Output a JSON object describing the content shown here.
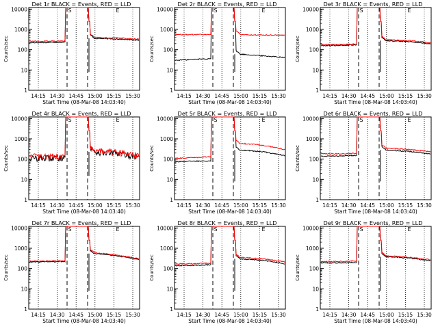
{
  "chart_data": [
    {
      "type": "line",
      "title": "Det 1r BLACK = Events, RED = LLD",
      "xlabel": "Start Time (08-Mar-08 14:03:40)",
      "ylabel": "Counts/sec",
      "xticks": [
        "14:15",
        "14:30",
        "14:45",
        "15:00",
        "15:15",
        "15:30"
      ],
      "yticks": [
        "1",
        "10",
        "100",
        "1000",
        "10000"
      ],
      "ylim": [
        1,
        12000
      ],
      "markers": [
        "S",
        "E"
      ],
      "red_base": [
        260,
        260,
        280,
        400,
        380,
        330
      ],
      "black_base": [
        220,
        230,
        240,
        360,
        340,
        290
      ]
    },
    {
      "type": "line",
      "title": "Det 2r BLACK = Events, RED = LLD",
      "xlabel": "Start Time (08-Mar-08 14:03:40)",
      "ylabel": "Counts/sec",
      "xticks": [
        "14:15",
        "14:30",
        "14:45",
        "15:00",
        "15:15",
        "15:30"
      ],
      "yticks": [
        "1",
        "10",
        "100",
        "1000",
        "10000"
      ],
      "ylim": [
        1,
        12000
      ],
      "markers": [
        "S",
        "E"
      ],
      "red_base": [
        560,
        560,
        560,
        540,
        530,
        520
      ],
      "black_base": [
        30,
        34,
        38,
        60,
        50,
        42
      ]
    },
    {
      "type": "line",
      "title": "Det 3r BLACK = Events, RED = LLD",
      "xlabel": "Start Time (08-Mar-08 14:03:40)",
      "ylabel": "Counts/sec",
      "xticks": [
        "14:15",
        "14:30",
        "14:45",
        "15:00",
        "15:15",
        "15:30"
      ],
      "yticks": [
        "1",
        "10",
        "100",
        "1000",
        "10000"
      ],
      "ylim": [
        1,
        12000
      ],
      "markers": [
        "S",
        "E"
      ],
      "red_base": [
        180,
        180,
        200,
        310,
        280,
        220
      ],
      "black_base": [
        160,
        165,
        180,
        280,
        250,
        195
      ]
    },
    {
      "type": "line",
      "title": "Det 4r BLACK = Events, RED = LLD",
      "xlabel": "Start Time (08-Mar-08 14:03:40)",
      "ylabel": "Counts/sec",
      "xticks": [
        "14:15",
        "14:30",
        "14:45",
        "15:00",
        "15:15",
        "15:30"
      ],
      "yticks": [
        "1",
        "10",
        "100",
        "1000",
        "10000"
      ],
      "ylim": [
        1,
        12000
      ],
      "markers": [
        "S",
        "E"
      ],
      "red_base": [
        140,
        140,
        160,
        260,
        220,
        150
      ],
      "black_base": [
        110,
        115,
        130,
        230,
        190,
        125
      ]
    },
    {
      "type": "line",
      "title": "Det 5r BLACK = Events, RED = LLD",
      "xlabel": "Start Time (08-Mar-08 14:03:40)",
      "ylabel": "Counts/sec",
      "xticks": [
        "14:15",
        "14:30",
        "14:45",
        "15:00",
        "15:15",
        "15:30"
      ],
      "yticks": [
        "1",
        "10",
        "100",
        "1000",
        "10000"
      ],
      "ylim": [
        1,
        12000
      ],
      "markers": [
        "S",
        "E"
      ],
      "red_base": [
        110,
        120,
        140,
        600,
        480,
        300
      ],
      "black_base": [
        75,
        80,
        85,
        280,
        230,
        150
      ]
    },
    {
      "type": "line",
      "title": "Det 6r BLACK = Events, RED = LLD",
      "xlabel": "Start Time (08-Mar-08 14:03:40)",
      "ylabel": "Counts/sec",
      "xticks": [
        "14:15",
        "14:30",
        "14:45",
        "15:00",
        "15:15",
        "15:30"
      ],
      "yticks": [
        "1",
        "10",
        "100",
        "1000",
        "10000"
      ],
      "ylim": [
        1,
        12000
      ],
      "markers": [
        "S",
        "E"
      ],
      "red_base": [
        180,
        185,
        200,
        350,
        300,
        230
      ],
      "black_base": [
        140,
        145,
        160,
        280,
        240,
        180
      ]
    },
    {
      "type": "line",
      "title": "Det 7r BLACK = Events, RED = LLD",
      "xlabel": "Start Time (08-Mar-08 14:03:40)",
      "ylabel": "Counts/sec",
      "xticks": [
        "14:15",
        "14:30",
        "14:45",
        "15:00",
        "15:15",
        "15:30"
      ],
      "yticks": [
        "1",
        "10",
        "100",
        "1000",
        "10000"
      ],
      "ylim": [
        1,
        12000
      ],
      "markers": [
        "S",
        "E"
      ],
      "red_base": [
        230,
        235,
        250,
        600,
        450,
        300
      ],
      "black_base": [
        210,
        215,
        230,
        550,
        420,
        280
      ]
    },
    {
      "type": "line",
      "title": "Det 8r BLACK = Events, RED = LLD",
      "xlabel": "Start Time (08-Mar-08 14:03:40)",
      "ylabel": "Counts/sec",
      "xticks": [
        "14:15",
        "14:30",
        "14:45",
        "15:00",
        "15:15",
        "15:30"
      ],
      "yticks": [
        "1",
        "10",
        "100",
        "1000",
        "10000"
      ],
      "ylim": [
        1,
        12000
      ],
      "markers": [
        "S",
        "E"
      ],
      "red_base": [
        170,
        175,
        190,
        350,
        300,
        210
      ],
      "black_base": [
        140,
        145,
        160,
        300,
        250,
        175
      ]
    },
    {
      "type": "line",
      "title": "Det 9r BLACK = Events, RED = LLD",
      "xlabel": "Start Time (08-Mar-08 14:03:40)",
      "ylabel": "Counts/sec",
      "xticks": [
        "14:15",
        "14:30",
        "14:45",
        "15:00",
        "15:15",
        "15:30"
      ],
      "yticks": [
        "1",
        "10",
        "100",
        "1000",
        "10000"
      ],
      "ylim": [
        1,
        12000
      ],
      "markers": [
        "S",
        "E"
      ],
      "red_base": [
        220,
        225,
        240,
        420,
        360,
        270
      ],
      "black_base": [
        190,
        195,
        210,
        380,
        330,
        240
      ]
    }
  ]
}
